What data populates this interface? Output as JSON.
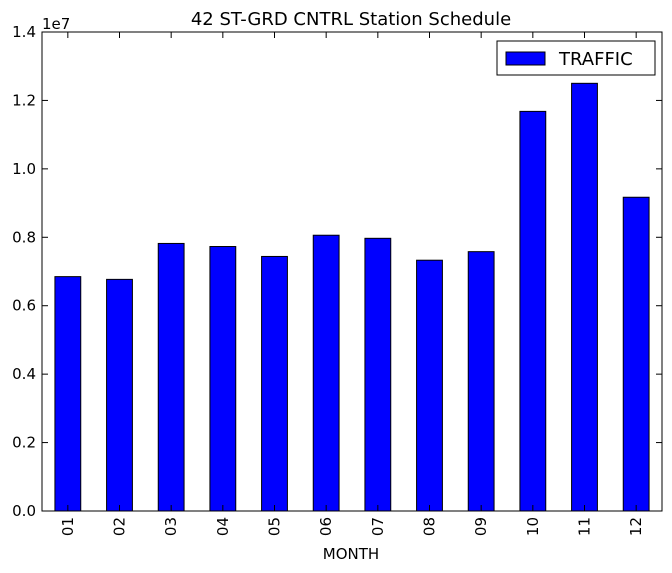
{
  "chart_data": {
    "type": "bar",
    "title": "42 ST-GRD CNTRL Station Schedule",
    "xlabel": "MONTH",
    "ylabel": "",
    "y_offset_label": "1e7",
    "categories": [
      "01",
      "02",
      "03",
      "04",
      "05",
      "06",
      "07",
      "08",
      "09",
      "10",
      "11",
      "12"
    ],
    "series": [
      {
        "name": "TRAFFIC",
        "color": "#0000ff",
        "values": [
          6850000,
          6770000,
          7820000,
          7730000,
          7440000,
          8060000,
          7970000,
          7330000,
          7580000,
          11680000,
          12500000,
          9170000
        ]
      }
    ],
    "ylim": [
      0,
      14000000
    ],
    "yticks": [
      {
        "value": 0,
        "label": "0.0"
      },
      {
        "value": 2000000,
        "label": "0.2"
      },
      {
        "value": 4000000,
        "label": "0.4"
      },
      {
        "value": 6000000,
        "label": "0.6"
      },
      {
        "value": 8000000,
        "label": "0.8"
      },
      {
        "value": 10000000,
        "label": "1.0"
      },
      {
        "value": 12000000,
        "label": "1.2"
      },
      {
        "value": 14000000,
        "label": "1.4"
      }
    ],
    "legend": "top-right",
    "grid": false
  }
}
